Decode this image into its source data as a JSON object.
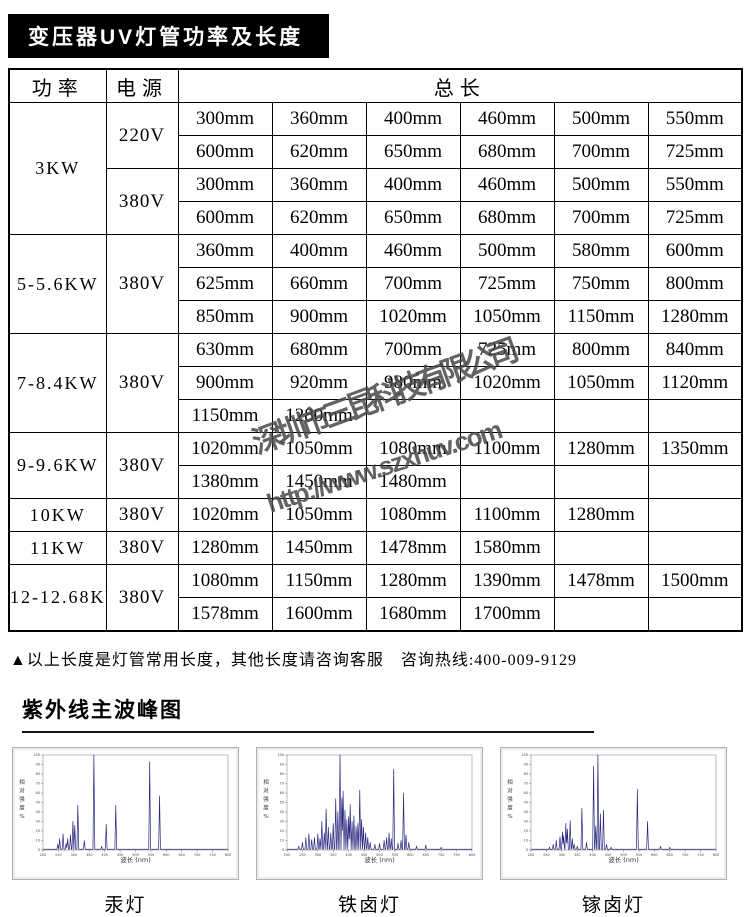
{
  "title": "变压器UV灯管功率及长度",
  "table": {
    "headers": {
      "power": "功率",
      "source": "电源",
      "length": "总长"
    },
    "groups": [
      {
        "power": "3KW",
        "subgroups": [
          {
            "voltage": "220V",
            "rows": [
              [
                "300mm",
                "360mm",
                "400mm",
                "460mm",
                "500mm",
                "550mm"
              ],
              [
                "600mm",
                "620mm",
                "650mm",
                "680mm",
                "700mm",
                "725mm"
              ]
            ]
          },
          {
            "voltage": "380V",
            "rows": [
              [
                "300mm",
                "360mm",
                "400mm",
                "460mm",
                "500mm",
                "550mm"
              ],
              [
                "600mm",
                "620mm",
                "650mm",
                "680mm",
                "700mm",
                "725mm"
              ]
            ]
          }
        ]
      },
      {
        "power": "5-5.6KW",
        "subgroups": [
          {
            "voltage": "380V",
            "rows": [
              [
                "360mm",
                "400mm",
                "460mm",
                "500mm",
                "580mm",
                "600mm"
              ],
              [
                "625mm",
                "660mm",
                "700mm",
                "725mm",
                "750mm",
                "800mm"
              ],
              [
                "850mm",
                "900mm",
                "1020mm",
                "1050mm",
                "1150mm",
                "1280mm"
              ]
            ]
          }
        ]
      },
      {
        "power": "7-8.4KW",
        "subgroups": [
          {
            "voltage": "380V",
            "rows": [
              [
                "630mm",
                "680mm",
                "700mm",
                "725mm",
                "800mm",
                "840mm"
              ],
              [
                "900mm",
                "920mm",
                "980mm",
                "1020mm",
                "1050mm",
                "1120mm"
              ],
              [
                "1150mm",
                "1280mm",
                "",
                "",
                "",
                ""
              ]
            ]
          }
        ]
      },
      {
        "power": "9-9.6KW",
        "subgroups": [
          {
            "voltage": "380V",
            "rows": [
              [
                "1020mm",
                "1050mm",
                "1080mm",
                "1100mm",
                "1280mm",
                "1350mm"
              ],
              [
                "1380mm",
                "1450mm",
                "1480mm",
                "",
                "",
                ""
              ]
            ]
          }
        ]
      },
      {
        "power": "10KW",
        "subgroups": [
          {
            "voltage": "380V",
            "rows": [
              [
                "1020mm",
                "1050mm",
                "1080mm",
                "1100mm",
                "1280mm",
                ""
              ]
            ]
          }
        ]
      },
      {
        "power": "11KW",
        "subgroups": [
          {
            "voltage": "380V",
            "rows": [
              [
                "1280mm",
                "1450mm",
                "1478mm",
                "1580mm",
                "",
                ""
              ]
            ]
          }
        ]
      },
      {
        "power": "12-12.68KW",
        "subgroups": [
          {
            "voltage": "380V",
            "rows": [
              [
                "1080mm",
                "1150mm",
                "1280mm",
                "1390mm",
                "1478mm",
                "1500mm"
              ],
              [
                "1578mm",
                "1600mm",
                "1680mm",
                "1700mm",
                "",
                ""
              ]
            ]
          }
        ]
      }
    ]
  },
  "note": "▲以上长度是灯管常用长度，其他长度请咨询客服　咨询热线:400-009-9129",
  "watermark": {
    "company": "深圳市三昆科技有限公司",
    "url": "http://www.szxhuv.com"
  },
  "spectra": {
    "title": "紫外线主波峰图"
  },
  "chart_data": [
    {
      "type": "line",
      "name": "mercury-lamp-spectrum",
      "label": "汞灯",
      "title": "",
      "xlabel": "波长 (nm)",
      "ylabel": "相对强度%",
      "xlim": [
        200,
        800
      ],
      "ylim": [
        0,
        100
      ],
      "x_tick_step": 50,
      "y_tick_step": 10,
      "grid": false,
      "legend": "none",
      "line_color": "#28287e",
      "peaks_wavelength_intensity": [
        [
          248,
          6
        ],
        [
          254,
          12
        ],
        [
          265,
          17
        ],
        [
          275,
          7
        ],
        [
          280,
          12
        ],
        [
          289,
          16
        ],
        [
          297,
          30
        ],
        [
          303,
          26
        ],
        [
          313,
          47
        ],
        [
          334,
          10
        ],
        [
          365,
          100
        ],
        [
          390,
          4
        ],
        [
          405,
          27
        ],
        [
          436,
          47
        ],
        [
          546,
          93
        ],
        [
          578,
          57
        ]
      ]
    },
    {
      "type": "line",
      "name": "iron-halide-lamp-spectrum",
      "label": "铁卤灯",
      "title": "",
      "xlabel": "波长 (nm)",
      "ylabel": "相对强度%",
      "xlim": [
        200,
        800
      ],
      "ylim": [
        0,
        100
      ],
      "x_tick_step": 50,
      "y_tick_step": 10,
      "grid": false,
      "legend": "none",
      "line_color": "#28287e",
      "peaks_wavelength_intensity": [
        [
          238,
          4
        ],
        [
          250,
          8
        ],
        [
          261,
          13
        ],
        [
          271,
          17
        ],
        [
          280,
          11
        ],
        [
          289,
          13
        ],
        [
          300,
          17
        ],
        [
          307,
          12
        ],
        [
          313,
          30
        ],
        [
          321,
          18
        ],
        [
          327,
          43
        ],
        [
          334,
          24
        ],
        [
          342,
          18
        ],
        [
          350,
          28
        ],
        [
          358,
          54
        ],
        [
          365,
          40
        ],
        [
          372,
          100
        ],
        [
          378,
          55
        ],
        [
          382,
          62
        ],
        [
          388,
          42
        ],
        [
          394,
          32
        ],
        [
          400,
          35
        ],
        [
          405,
          48
        ],
        [
          411,
          30
        ],
        [
          417,
          36
        ],
        [
          424,
          25
        ],
        [
          430,
          28
        ],
        [
          436,
          63
        ],
        [
          442,
          32
        ],
        [
          448,
          24
        ],
        [
          455,
          18
        ],
        [
          462,
          13
        ],
        [
          470,
          8
        ],
        [
          485,
          6
        ],
        [
          500,
          7
        ],
        [
          515,
          10
        ],
        [
          523,
          13
        ],
        [
          531,
          18
        ],
        [
          538,
          12
        ],
        [
          546,
          85
        ],
        [
          560,
          7
        ],
        [
          570,
          10
        ],
        [
          578,
          60
        ],
        [
          586,
          16
        ],
        [
          595,
          8
        ],
        [
          620,
          4
        ],
        [
          650,
          5
        ],
        [
          700,
          3
        ]
      ]
    },
    {
      "type": "line",
      "name": "gallium-halide-lamp-spectrum",
      "label": "镓卤灯",
      "title": "",
      "xlabel": "波长 (nm)",
      "ylabel": "相对强度%",
      "xlim": [
        200,
        800
      ],
      "ylim": [
        0,
        100
      ],
      "x_tick_step": 50,
      "y_tick_step": 10,
      "grid": false,
      "legend": "none",
      "line_color": "#28287e",
      "peaks_wavelength_intensity": [
        [
          260,
          3
        ],
        [
          272,
          6
        ],
        [
          282,
          10
        ],
        [
          294,
          14
        ],
        [
          302,
          19
        ],
        [
          306,
          15
        ],
        [
          313,
          28
        ],
        [
          318,
          22
        ],
        [
          327,
          31
        ],
        [
          334,
          12
        ],
        [
          340,
          6
        ],
        [
          350,
          4
        ],
        [
          365,
          44
        ],
        [
          380,
          8
        ],
        [
          403,
          88
        ],
        [
          410,
          25
        ],
        [
          417,
          100
        ],
        [
          425,
          38
        ],
        [
          435,
          42
        ],
        [
          445,
          6
        ],
        [
          460,
          3
        ],
        [
          545,
          64
        ],
        [
          578,
          30
        ],
        [
          620,
          4
        ],
        [
          650,
          3
        ]
      ]
    }
  ]
}
